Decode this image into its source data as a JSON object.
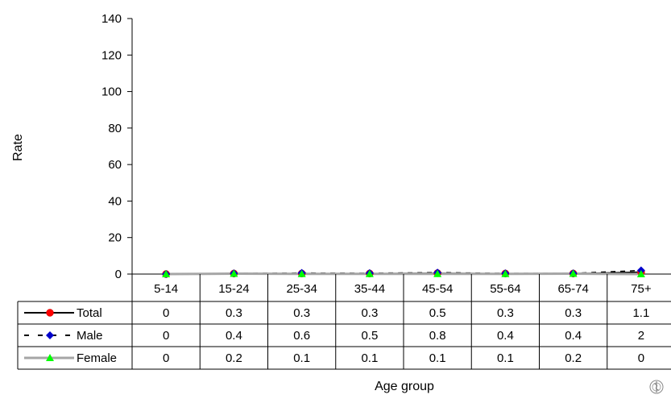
{
  "chart_data": {
    "type": "line",
    "title": "",
    "xlabel": "Age group",
    "ylabel": "Rate",
    "ylim": [
      0,
      140
    ],
    "yticks": [
      0,
      20,
      40,
      60,
      80,
      100,
      120,
      140
    ],
    "grid": false,
    "legend": "data-table",
    "categories": [
      "5-14",
      "15-24",
      "25-34",
      "35-44",
      "45-54",
      "55-64",
      "65-74",
      "75+"
    ],
    "series": [
      {
        "name": "Total",
        "values": [
          0,
          0.3,
          0.3,
          0.3,
          0.5,
          0.3,
          0.3,
          1.1
        ],
        "display": [
          "0",
          "0.3",
          "0.3",
          "0.3",
          "0.5",
          "0.3",
          "0.3",
          "1.1"
        ],
        "color": "#000000",
        "marker": "circle",
        "marker_color": "#ff0000",
        "line": "solid"
      },
      {
        "name": "Male",
        "values": [
          0,
          0.4,
          0.6,
          0.5,
          0.8,
          0.4,
          0.4,
          2
        ],
        "display": [
          "0",
          "0.4",
          "0.6",
          "0.5",
          "0.8",
          "0.4",
          "0.4",
          "2"
        ],
        "color": "#000000",
        "marker": "diamond",
        "marker_color": "#0000cc",
        "line": "dashed"
      },
      {
        "name": "Female",
        "values": [
          0,
          0.2,
          0.1,
          0.1,
          0.1,
          0.1,
          0.2,
          0
        ],
        "display": [
          "0",
          "0.2",
          "0.1",
          "0.1",
          "0.1",
          "0.1",
          "0.2",
          "0"
        ],
        "color": "#a6a6a6",
        "marker": "triangle",
        "marker_color": "#00ff00",
        "line": "solid"
      }
    ]
  },
  "logo": {
    "icon": "who-emblem-icon"
  }
}
